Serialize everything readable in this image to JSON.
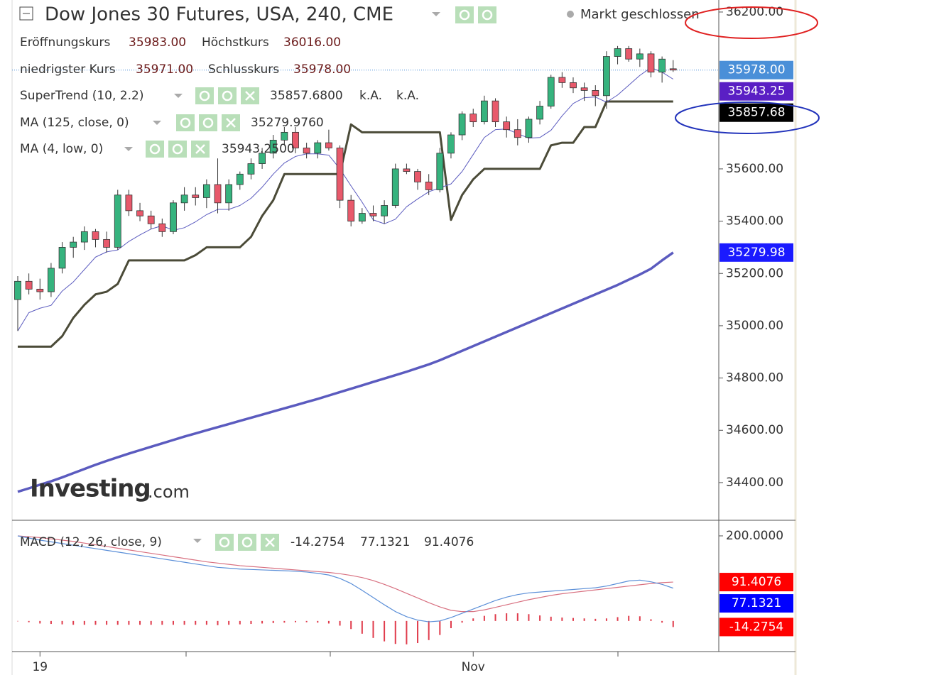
{
  "header": {
    "title": "Dow Jones 30 Futures, USA, 240, CME",
    "status": "Markt geschlossen",
    "ohlc": [
      {
        "label": "Eröffnungskurs",
        "value": "35983.00"
      },
      {
        "label": "Höchstkurs",
        "value": "36016.00"
      },
      {
        "label": "niedrigster Kurs",
        "value": "35971.00"
      },
      {
        "label": "Schlusskurs",
        "value": "35978.00"
      }
    ],
    "indicators": [
      {
        "name": "SuperTrend (10, 2.2)",
        "values": [
          "35857.6800",
          "k.A.",
          "k.A."
        ]
      },
      {
        "name": "MA (125, close, 0)",
        "values": [
          "35279.9760"
        ]
      },
      {
        "name": "MA (4, low, 0)",
        "values": [
          "35943.2500"
        ]
      },
      {
        "name": "MACD (12, 26, close, 9)",
        "values": [
          "-14.2754",
          "77.1321",
          "91.4076"
        ]
      }
    ],
    "logo": {
      "brand": "Investing",
      "suffix": ".com"
    }
  },
  "chart_data": [
    {
      "type": "candlestick",
      "categories": [
        null,
        null,
        "19",
        null,
        null,
        null,
        null,
        null,
        null,
        null,
        null,
        null,
        null,
        null,
        null,
        null,
        null,
        null,
        null,
        null,
        null,
        null,
        null,
        null,
        null,
        null,
        null,
        null,
        null,
        null,
        null,
        null,
        null,
        null,
        null,
        null,
        null,
        null,
        null,
        null,
        null,
        "Nov",
        null,
        null,
        null,
        null,
        null,
        null,
        null,
        null,
        null,
        null,
        null,
        null,
        null,
        null,
        null,
        null,
        null,
        null
      ],
      "open": [
        35100,
        35170,
        35140,
        35130,
        35220,
        35300,
        35320,
        35360,
        35330,
        35300,
        35500,
        35440,
        35420,
        35390,
        35360,
        35470,
        35500,
        35490,
        35540,
        35470,
        35540,
        35580,
        35620,
        35660,
        35710,
        35740,
        35680,
        35660,
        35700,
        35680,
        35480,
        35400,
        35430,
        35420,
        35460,
        35600,
        35590,
        35550,
        35520,
        35660,
        35730,
        35810,
        35780,
        35860,
        35780,
        35750,
        35720,
        35790,
        35840,
        35950,
        35930,
        35910,
        35900,
        35880,
        36030,
        36060,
        36020,
        36040,
        35970,
        35983
      ],
      "high": [
        35190,
        35200,
        35180,
        35240,
        35320,
        35340,
        35380,
        35370,
        35360,
        35520,
        35520,
        35470,
        35440,
        35410,
        35480,
        35530,
        35530,
        35560,
        35640,
        35560,
        35590,
        35640,
        35680,
        35730,
        35760,
        35760,
        35700,
        35710,
        35750,
        35690,
        35500,
        35450,
        35460,
        35480,
        35620,
        35620,
        35600,
        35580,
        35680,
        35740,
        35820,
        35830,
        35880,
        35870,
        35800,
        35790,
        35800,
        35860,
        35960,
        35970,
        35950,
        35930,
        35920,
        36050,
        36070,
        36070,
        36060,
        36050,
        36030,
        36016
      ],
      "low": [
        34980,
        35120,
        35100,
        35110,
        35200,
        35260,
        35290,
        35300,
        35280,
        35290,
        35420,
        35400,
        35370,
        35340,
        35350,
        35440,
        35460,
        35450,
        35430,
        35440,
        35520,
        35560,
        35600,
        35640,
        35690,
        35660,
        35640,
        35640,
        35670,
        35450,
        35380,
        35390,
        35400,
        35390,
        35450,
        35580,
        35520,
        35500,
        35510,
        35640,
        35710,
        35760,
        35770,
        35760,
        35720,
        35690,
        35700,
        35770,
        35830,
        35910,
        35890,
        35860,
        35840,
        35830,
        36000,
        36010,
        35990,
        35950,
        35930,
        35971
      ],
      "close": [
        35170,
        35140,
        35130,
        35220,
        35300,
        35320,
        35360,
        35330,
        35300,
        35500,
        35440,
        35420,
        35390,
        35360,
        35470,
        35500,
        35490,
        35540,
        35470,
        35540,
        35580,
        35620,
        35660,
        35710,
        35740,
        35680,
        35660,
        35700,
        35680,
        35480,
        35400,
        35430,
        35420,
        35460,
        35600,
        35590,
        35550,
        35520,
        35660,
        35730,
        35810,
        35780,
        35860,
        35780,
        35750,
        35720,
        35790,
        35840,
        35950,
        35930,
        35910,
        35900,
        35880,
        36030,
        36060,
        36020,
        36040,
        35970,
        36020,
        35978
      ],
      "up_color": "#36b37e",
      "down_color": "#e8596b",
      "supertrend": {
        "color": "#4b4b38",
        "values": [
          34920,
          34920,
          34920,
          34920,
          34960,
          35030,
          35080,
          35120,
          35130,
          35160,
          35250,
          35250,
          35250,
          35250,
          35250,
          35250,
          35270,
          35300,
          35300,
          35300,
          35300,
          35340,
          35420,
          35480,
          35580,
          35580,
          35580,
          35580,
          35580,
          35580,
          35770,
          35740,
          35740,
          35740,
          35740,
          35740,
          35740,
          35740,
          35740,
          35405,
          35500,
          35560,
          35600,
          35600,
          35600,
          35600,
          35600,
          35600,
          35690,
          35700,
          35700,
          35760,
          35760,
          35857.68,
          35857.68,
          35857.68,
          35857.68,
          35857.68,
          35857.68,
          35857.68
        ]
      },
      "ma_125": {
        "color": "#5b5bbf",
        "values": [
          34365,
          34378,
          34392,
          34405,
          34420,
          34436,
          34452,
          34468,
          34483,
          34497,
          34511,
          34524,
          34537,
          34550,
          34563,
          34576,
          34588,
          34600,
          34612,
          34624,
          34636,
          34648,
          34660,
          34672,
          34684,
          34696,
          34708,
          34720,
          34733,
          34746,
          34759,
          34772,
          34785,
          34798,
          34811,
          34824,
          34838,
          34852,
          34868,
          34886,
          34904,
          34922,
          34940,
          34958,
          34976,
          34994,
          35012,
          35030,
          35048,
          35066,
          35084,
          35102,
          35120,
          35138,
          35156,
          35176,
          35196,
          35218,
          35250,
          35279.976
        ]
      },
      "ma_4": {
        "color": "#5b5bbf",
        "values": [
          34980,
          35050,
          35067,
          35078,
          35132.5,
          35167.5,
          35215,
          35262.5,
          35282.5,
          35290,
          35322.5,
          35347.5,
          35370,
          35382.5,
          35365,
          35375,
          35397.5,
          35425,
          35445,
          35445,
          35460,
          35487.5,
          35530,
          35580,
          35622.5,
          35647.5,
          35657.5,
          35657.5,
          35652.5,
          35600,
          35535,
          35472.5,
          35405,
          35390,
          35407.5,
          35455,
          35485,
          35512.5,
          35527.5,
          35542.5,
          35590,
          35655,
          35720,
          35750,
          35752.5,
          35735,
          35717.5,
          35720,
          35747.5,
          35802.5,
          35850,
          35872.5,
          35875,
          35855,
          35882.5,
          35920,
          35957.5,
          35987.5,
          35970,
          35943.25
        ]
      },
      "ylim": [
        34264,
        36246
      ],
      "yticks": [
        {
          "value": 34400,
          "label": "34400.00"
        },
        {
          "value": 34600,
          "label": "34600.00"
        },
        {
          "value": 34800,
          "label": "34800.00"
        },
        {
          "value": 35000,
          "label": "35000.00"
        },
        {
          "value": 35200,
          "label": "35200.00"
        },
        {
          "value": 35400,
          "label": "35400.00"
        },
        {
          "value": 35600,
          "label": "35600.00"
        },
        {
          "value": 36200,
          "label": "36200.00"
        }
      ],
      "price_labels": [
        {
          "value": 35978,
          "label": "35978.00",
          "color": "#4a8fd8"
        },
        {
          "value": 35943.25,
          "label": "35943.25",
          "color": "#5a1fc4"
        },
        {
          "value": 35857.68,
          "label": "35857.68",
          "color": "#000000"
        },
        {
          "value": 35279.98,
          "label": "35279.98",
          "color": "#1a1aff"
        }
      ]
    },
    {
      "type": "macd",
      "macd": {
        "color": "#5b8fd8",
        "values": [
          200,
          195,
          190,
          186,
          182,
          178,
          174,
          170,
          166,
          162,
          158,
          154,
          150,
          146,
          142,
          138,
          134,
          130,
          126,
          124,
          122,
          121,
          120,
          119,
          118,
          117,
          115,
          112,
          108,
          100,
          88,
          72,
          55,
          38,
          22,
          10,
          2,
          -2,
          0,
          8,
          18,
          28,
          38,
          48,
          56,
          62,
          66,
          68,
          70,
          72,
          74,
          76,
          78,
          82,
          88,
          94,
          96,
          92,
          86,
          77.1321
        ]
      },
      "signal": {
        "color": "#d87080",
        "values": [
          200,
          198,
          196,
          193,
          190,
          187,
          183,
          179,
          175,
          171,
          167,
          163,
          159,
          155,
          151,
          147,
          143,
          139,
          136,
          133,
          130,
          128,
          126,
          124,
          122,
          120,
          118,
          116,
          114,
          111,
          107,
          102,
          95,
          86,
          76,
          65,
          54,
          43,
          33,
          25,
          22,
          22,
          26,
          32,
          38,
          44,
          50,
          55,
          60,
          64,
          67,
          70,
          73,
          76,
          79,
          82,
          85,
          88,
          90,
          91.4076
        ]
      },
      "histogram": {
        "color": "#e03c4c",
        "values": [
          0,
          -3,
          -6,
          -7,
          -8,
          -9,
          -9,
          -9,
          -9,
          -9,
          -9,
          -9,
          -9,
          -9,
          -9,
          -9,
          -9,
          -9,
          -10,
          -9,
          -8,
          -7,
          -6,
          -5,
          -4,
          -3,
          -3,
          -4,
          -6,
          -11,
          -19,
          -30,
          -40,
          -48,
          -54,
          -55,
          -52,
          -45,
          -33,
          -17,
          -4,
          6,
          12,
          16,
          18,
          18,
          16,
          13,
          10,
          8,
          7,
          6,
          5,
          6,
          9,
          12,
          11,
          4,
          -4,
          -14.2754
        ]
      },
      "ylim": [
        -72,
        230
      ],
      "yticks": [
        {
          "value": 200,
          "label": "200.0000"
        }
      ],
      "price_labels": [
        {
          "value": 91.4076,
          "label": "91.4076",
          "color": "#ff0000"
        },
        {
          "value": 77.1321,
          "label": "77.1321",
          "color": "#0000ff"
        },
        {
          "value": -14.2754,
          "label": "-14.2754",
          "color": "#ff0000"
        }
      ]
    }
  ]
}
